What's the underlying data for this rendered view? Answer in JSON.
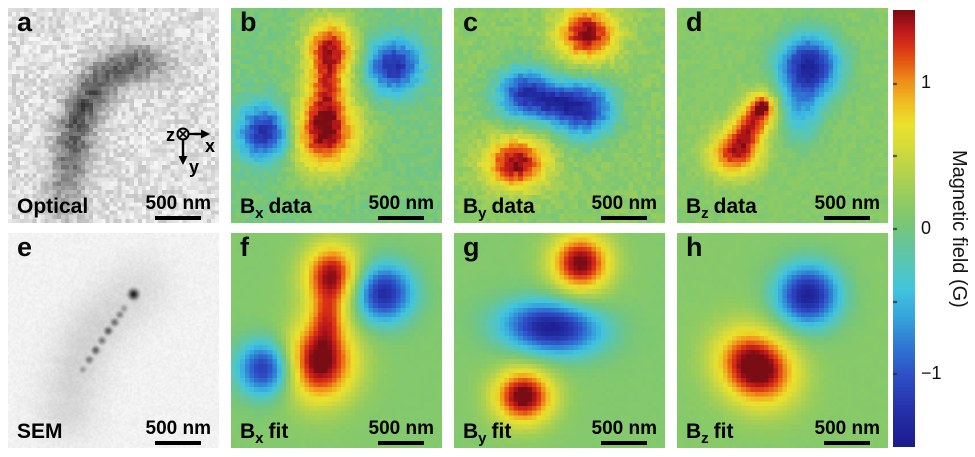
{
  "figure": {
    "panels": [
      {
        "letter": "a",
        "label_base": "Optical",
        "label_sub": "",
        "label_rest": "",
        "scalebar_text": "500 nm"
      },
      {
        "letter": "b",
        "label_base": "B",
        "label_sub": "x",
        "label_rest": "data",
        "scalebar_text": "500 nm"
      },
      {
        "letter": "c",
        "label_base": "B",
        "label_sub": "y",
        "label_rest": "data",
        "scalebar_text": "500 nm"
      },
      {
        "letter": "d",
        "label_base": "B",
        "label_sub": "z",
        "label_rest": "data",
        "scalebar_text": "500 nm"
      },
      {
        "letter": "e",
        "label_base": "SEM",
        "label_sub": "",
        "label_rest": "",
        "scalebar_text": "500 nm"
      },
      {
        "letter": "f",
        "label_base": "B",
        "label_sub": "x",
        "label_rest": "fit",
        "scalebar_text": "500 nm"
      },
      {
        "letter": "g",
        "label_base": "B",
        "label_sub": "y",
        "label_rest": "fit",
        "scalebar_text": "500 nm"
      },
      {
        "letter": "h",
        "label_base": "B",
        "label_sub": "z",
        "label_rest": "fit",
        "scalebar_text": "500 nm"
      }
    ],
    "axes_widget": {
      "z": "z",
      "x": "x",
      "y": "y"
    },
    "colorbar": {
      "title": "Magnetic field (G)",
      "ticks": [
        {
          "value": 1,
          "label": "1"
        },
        {
          "value": 0,
          "label": "0"
        },
        {
          "value": -1,
          "label": "−1"
        }
      ],
      "minor_tick_values": [
        1,
        0.5,
        0,
        -0.5,
        -1
      ],
      "range_G": [
        -1.5,
        1.5
      ]
    }
  },
  "chart_data": {
    "type": "heatmap",
    "units": "G",
    "value_range": [
      -1.5,
      1.5
    ],
    "scale_bar_nm": 500,
    "colormap_stops": [
      [
        0.0,
        "#1c1b8e"
      ],
      [
        0.08,
        "#2430a8"
      ],
      [
        0.16,
        "#2e4ec6"
      ],
      [
        0.23,
        "#2f78d2"
      ],
      [
        0.3,
        "#37a6dc"
      ],
      [
        0.36,
        "#41c4de"
      ],
      [
        0.42,
        "#58c6b6"
      ],
      [
        0.47,
        "#69c593"
      ],
      [
        0.5,
        "#75c67b"
      ],
      [
        0.56,
        "#8fcb62"
      ],
      [
        0.63,
        "#b6d34c"
      ],
      [
        0.69,
        "#d8db3a"
      ],
      [
        0.74,
        "#eae22c"
      ],
      [
        0.79,
        "#f0bc22"
      ],
      [
        0.84,
        "#ee8d19"
      ],
      [
        0.88,
        "#e55b13"
      ],
      [
        0.92,
        "#d93016"
      ],
      [
        0.96,
        "#b5161a"
      ],
      [
        1.0,
        "#7a0c13"
      ]
    ],
    "panels": [
      {
        "id": "a",
        "kind": "optical",
        "title": "Optical",
        "res": 52,
        "bg": 0.13,
        "noise": 0.1,
        "sigma": 0.062,
        "seed": 11,
        "path": [
          [
            0.27,
            0.9,
            0.25
          ],
          [
            0.28,
            0.81,
            0.35
          ],
          [
            0.295,
            0.72,
            0.45
          ],
          [
            0.31,
            0.63,
            0.52
          ],
          [
            0.33,
            0.54,
            0.56
          ],
          [
            0.36,
            0.46,
            0.58
          ],
          [
            0.405,
            0.385,
            0.56
          ],
          [
            0.46,
            0.325,
            0.52
          ],
          [
            0.52,
            0.285,
            0.5
          ],
          [
            0.585,
            0.26,
            0.48
          ],
          [
            0.645,
            0.255,
            0.4
          ],
          [
            0.7,
            0.27,
            0.25
          ]
        ]
      },
      {
        "id": "b",
        "kind": "heatmap",
        "title": "Bx data",
        "res": 46,
        "bg": 0.02,
        "noise": 0.1,
        "seed": 2,
        "blobs": [
          {
            "cx": 0.47,
            "cy": 0.19,
            "peak_G": 1.35,
            "sx": 0.085,
            "sy": 0.1,
            "rot": 0
          },
          {
            "cx": 0.44,
            "cy": 0.58,
            "peak_G": 1.5,
            "sx": 0.115,
            "sy": 0.125,
            "rot": 0
          },
          {
            "cx": 0.455,
            "cy": 0.38,
            "peak_G": 0.7,
            "sx": 0.06,
            "sy": 0.09,
            "rot": 0
          },
          {
            "cx": 0.165,
            "cy": 0.58,
            "peak_G": -1.35,
            "sx": 0.09,
            "sy": 0.09,
            "rot": 0
          },
          {
            "cx": 0.77,
            "cy": 0.27,
            "peak_G": -1.3,
            "sx": 0.09,
            "sy": 0.085,
            "rot": 0
          }
        ]
      },
      {
        "id": "c",
        "kind": "heatmap",
        "title": "By data",
        "res": 46,
        "bg": 0.14,
        "noise": 0.11,
        "seed": 3,
        "blobs": [
          {
            "cx": 0.63,
            "cy": 0.12,
            "peak_G": 1.35,
            "sx": 0.1,
            "sy": 0.09,
            "rot": 0
          },
          {
            "cx": 0.34,
            "cy": 0.4,
            "peak_G": -1.35,
            "sx": 0.095,
            "sy": 0.085,
            "rot": 0
          },
          {
            "cx": 0.61,
            "cy": 0.47,
            "peak_G": -1.4,
            "sx": 0.1,
            "sy": 0.09,
            "rot": 0
          },
          {
            "cx": 0.48,
            "cy": 0.44,
            "peak_G": -0.6,
            "sx": 0.07,
            "sy": 0.05,
            "rot": 0
          },
          {
            "cx": 0.295,
            "cy": 0.72,
            "peak_G": 1.35,
            "sx": 0.105,
            "sy": 0.085,
            "rot": 0
          }
        ]
      },
      {
        "id": "d",
        "kind": "heatmap",
        "title": "Bz data",
        "res": 46,
        "bg": 0.12,
        "noise": 0.07,
        "seed": 4,
        "blobs": [
          {
            "cx": 0.625,
            "cy": 0.27,
            "peak_G": -1.5,
            "sx": 0.1,
            "sy": 0.1,
            "rot": 0
          },
          {
            "cx": 0.585,
            "cy": 0.48,
            "peak_G": -0.55,
            "sx": 0.075,
            "sy": 0.1,
            "rot": 0
          },
          {
            "cx": 0.4,
            "cy": 0.47,
            "peak_G": 1.1,
            "sx": 0.055,
            "sy": 0.06,
            "rot": 0
          },
          {
            "cx": 0.41,
            "cy": 0.455,
            "peak_G": 0.5,
            "sx": 0.022,
            "sy": 0.022,
            "rot": 0
          },
          {
            "cx": 0.335,
            "cy": 0.57,
            "peak_G": 0.85,
            "sx": 0.06,
            "sy": 0.065,
            "rot": 0
          },
          {
            "cx": 0.27,
            "cy": 0.68,
            "peak_G": 1.15,
            "sx": 0.085,
            "sy": 0.075,
            "rot": 0
          }
        ]
      },
      {
        "id": "e",
        "kind": "sem",
        "title": "SEM",
        "res": 116,
        "bg": 0.05,
        "noise": 0.025,
        "sigma": 0.1,
        "seed": 5,
        "path": [
          [
            0.28,
            0.82,
            0.11
          ],
          [
            0.3,
            0.72,
            0.12
          ],
          [
            0.33,
            0.62,
            0.13
          ],
          [
            0.37,
            0.52,
            0.13
          ],
          [
            0.43,
            0.43,
            0.13
          ],
          [
            0.5,
            0.36,
            0.12
          ],
          [
            0.57,
            0.3,
            0.11
          ],
          [
            0.63,
            0.25,
            0.09
          ]
        ],
        "chain_sigma": 0.014,
        "chain": [
          [
            0.355,
            0.635,
            0.35
          ],
          [
            0.385,
            0.59,
            0.5
          ],
          [
            0.415,
            0.545,
            0.6
          ],
          [
            0.445,
            0.5,
            0.5
          ],
          [
            0.475,
            0.455,
            0.62
          ],
          [
            0.505,
            0.415,
            0.55
          ],
          [
            0.53,
            0.38,
            0.45
          ],
          [
            0.55,
            0.35,
            0.35
          ]
        ],
        "dot_sigma": 0.018,
        "dots": [
          [
            0.595,
            0.285,
            0.85
          ]
        ]
      },
      {
        "id": "f",
        "kind": "heatmap",
        "title": "Bx fit",
        "res": 46,
        "bg": 0.1,
        "noise": 0.015,
        "seed": 6,
        "blobs": [
          {
            "cx": 0.48,
            "cy": 0.2,
            "peak_G": 1.4,
            "sx": 0.095,
            "sy": 0.105,
            "rot": 0
          },
          {
            "cx": 0.42,
            "cy": 0.6,
            "peak_G": 1.5,
            "sx": 0.12,
            "sy": 0.13,
            "rot": 0
          },
          {
            "cx": 0.46,
            "cy": 0.4,
            "peak_G": 0.6,
            "sx": 0.06,
            "sy": 0.08,
            "rot": 0
          },
          {
            "cx": 0.16,
            "cy": 0.63,
            "peak_G": -1.35,
            "sx": 0.09,
            "sy": 0.09,
            "rot": 0
          },
          {
            "cx": 0.72,
            "cy": 0.28,
            "peak_G": -1.45,
            "sx": 0.1,
            "sy": 0.095,
            "rot": 0
          }
        ]
      },
      {
        "id": "g",
        "kind": "heatmap",
        "title": "By fit",
        "res": 46,
        "bg": 0.1,
        "noise": 0.015,
        "seed": 7,
        "blobs": [
          {
            "cx": 0.6,
            "cy": 0.14,
            "peak_G": 1.45,
            "sx": 0.1,
            "sy": 0.095,
            "rot": 0
          },
          {
            "cx": 0.46,
            "cy": 0.44,
            "peak_G": -1.55,
            "sx": 0.165,
            "sy": 0.085,
            "rot": 0.08
          },
          {
            "cx": 0.33,
            "cy": 0.76,
            "peak_G": 1.5,
            "sx": 0.1,
            "sy": 0.09,
            "rot": 0
          }
        ]
      },
      {
        "id": "h",
        "kind": "heatmap",
        "title": "Bz fit",
        "res": 46,
        "bg": 0.12,
        "noise": 0.015,
        "seed": 8,
        "blobs": [
          {
            "cx": 0.62,
            "cy": 0.29,
            "peak_G": -1.55,
            "sx": 0.105,
            "sy": 0.1,
            "rot": 0
          },
          {
            "cx": 0.375,
            "cy": 0.625,
            "peak_G": 1.6,
            "sx": 0.135,
            "sy": 0.115,
            "rot": 0.6
          }
        ]
      }
    ]
  }
}
